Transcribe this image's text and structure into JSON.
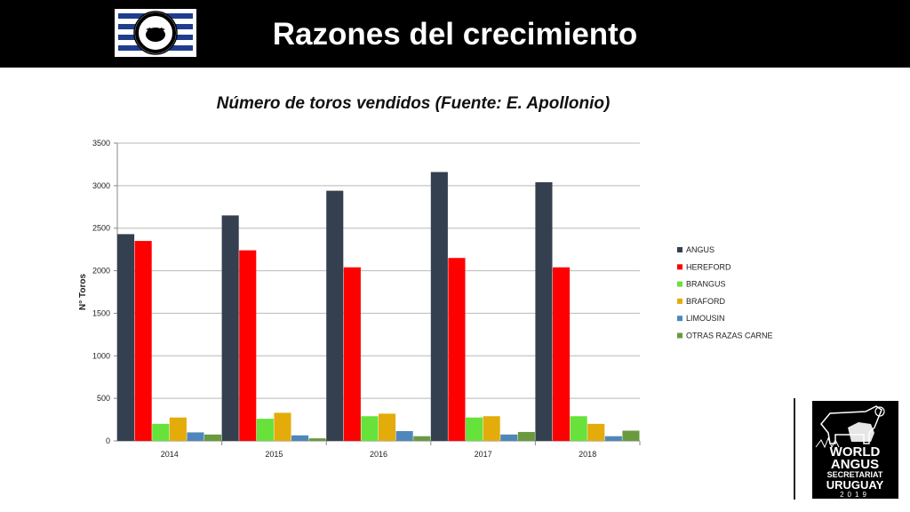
{
  "header": {
    "title": "Razones del crecimiento"
  },
  "logos": {
    "left_logo": "Sociedad de Criadores de Angus del Uruguay",
    "right_logo": "World Angus Secretariat Uruguay 2019"
  },
  "chart_data": {
    "type": "bar",
    "title": "Número de toros vendidos (Fuente: E. Apollonio)",
    "xlabel": "",
    "ylabel": "N° Toros",
    "ylim": [
      0,
      3500
    ],
    "yticks": [
      0,
      500,
      1000,
      1500,
      2000,
      2500,
      3000,
      3500
    ],
    "grid": true,
    "legend_position": "right",
    "categories": [
      "2014",
      "2015",
      "2016",
      "2017",
      "2018"
    ],
    "series": [
      {
        "name": "ANGUS",
        "color": "#343f4f",
        "values": [
          2430,
          2650,
          2940,
          3160,
          3040
        ]
      },
      {
        "name": "HEREFORD",
        "color": "#ff0000",
        "values": [
          2350,
          2240,
          2040,
          2150,
          2040
        ]
      },
      {
        "name": "BRANGUS",
        "color": "#66e23a",
        "values": [
          200,
          260,
          290,
          275,
          290
        ]
      },
      {
        "name": "BRAFORD",
        "color": "#e3ac0a",
        "values": [
          275,
          330,
          320,
          290,
          200
        ]
      },
      {
        "name": "LIMOUSIN",
        "color": "#4f87bb",
        "values": [
          100,
          65,
          115,
          75,
          55
        ]
      },
      {
        "name": "OTRAS RAZAS CARNE",
        "color": "#6a9a3f",
        "values": [
          75,
          30,
          55,
          105,
          120
        ]
      }
    ]
  }
}
